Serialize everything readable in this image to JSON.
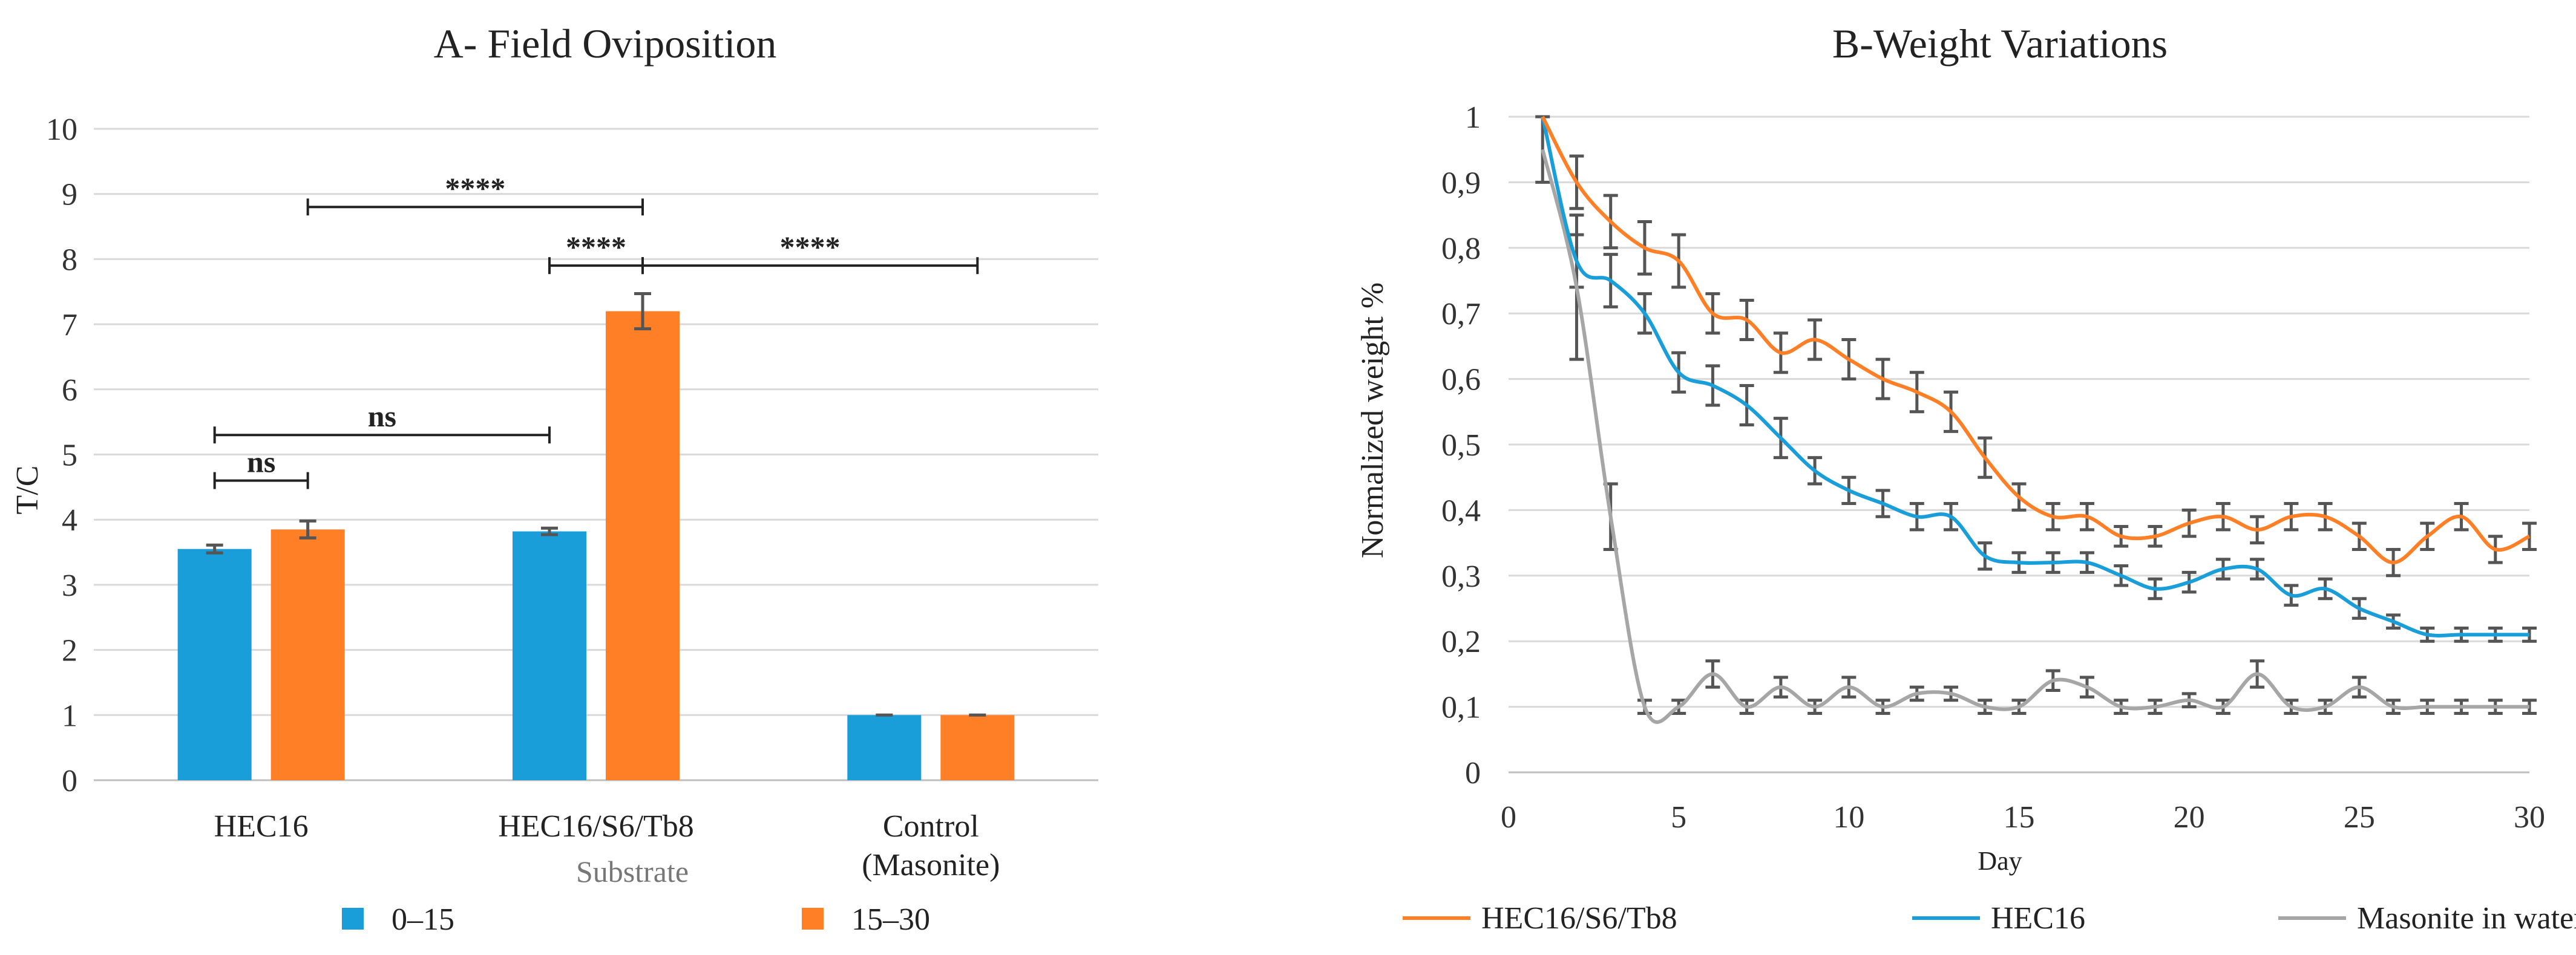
{
  "chart_data": [
    {
      "type": "bar",
      "title": "A- Field Oviposition",
      "xlabel": "Substrate",
      "ylabel": "T/C",
      "ylim": [
        0,
        10
      ],
      "yticks": [
        "0",
        "1",
        "2",
        "3",
        "4",
        "5",
        "6",
        "7",
        "8",
        "9",
        "10"
      ],
      "categories": [
        {
          "line1": "HEC16",
          "line2": ""
        },
        {
          "line1": "HEC16/S6/Tb8",
          "line2": ""
        },
        {
          "line1": "Control",
          "line2": "(Masonite)"
        }
      ],
      "series": [
        {
          "name": "0–15",
          "color": "#1a9ed9",
          "values": [
            3.55,
            3.82,
            1.0
          ],
          "errors": [
            0.06,
            0.05,
            0.0
          ]
        },
        {
          "name": "15–30",
          "color": "#ff7f27",
          "values": [
            3.85,
            7.2,
            1.0
          ],
          "errors": [
            0.13,
            0.27,
            0.0
          ]
        }
      ],
      "significance": [
        {
          "label": "ns",
          "from": {
            "cat": 0,
            "series": 0
          },
          "to": {
            "cat": 0,
            "series": 1
          },
          "level": 4.6
        },
        {
          "label": "ns",
          "from": {
            "cat": 0,
            "series": 0
          },
          "to": {
            "cat": 1,
            "series": 0
          },
          "level": 5.3
        },
        {
          "label": "****",
          "from": {
            "cat": 1,
            "series": 0
          },
          "to": {
            "cat": 1,
            "series": 1
          },
          "level": 7.9
        },
        {
          "label": "****",
          "from": {
            "cat": 1,
            "series": 1
          },
          "to": {
            "cat": 2,
            "series": 1
          },
          "level": 7.9
        },
        {
          "label": "****",
          "from": {
            "cat": 0,
            "series": 1
          },
          "to": {
            "cat": 1,
            "series": 1
          },
          "level": 8.8
        }
      ],
      "legend_position": "bottom"
    },
    {
      "type": "line",
      "title": "B-Weight Variations",
      "xlabel": "Day",
      "ylabel": "Normalized weight %",
      "xlim": [
        0,
        30
      ],
      "ylim": [
        0,
        1
      ],
      "xticks": [
        "0",
        "5",
        "10",
        "15",
        "20",
        "25",
        "30"
      ],
      "yticks": [
        "0",
        "0,1",
        "0,2",
        "0,3",
        "0,4",
        "0,5",
        "0,6",
        "0,7",
        "0,8",
        "0,9",
        "1"
      ],
      "x": [
        1,
        2,
        3,
        4,
        5,
        6,
        7,
        8,
        9,
        10,
        11,
        12,
        13,
        14,
        15,
        16,
        17,
        18,
        19,
        20,
        21,
        22,
        23,
        24,
        25,
        26,
        27,
        28,
        29,
        30
      ],
      "series": [
        {
          "name": "HEC16/S6/Tb8",
          "color": "#ff7f27",
          "values": [
            1.0,
            0.9,
            0.84,
            0.8,
            0.78,
            0.7,
            0.69,
            0.64,
            0.66,
            0.63,
            0.6,
            0.58,
            0.55,
            0.48,
            0.42,
            0.39,
            0.39,
            0.36,
            0.36,
            0.38,
            0.39,
            0.37,
            0.39,
            0.39,
            0.36,
            0.32,
            0.36,
            0.39,
            0.34,
            0.36
          ],
          "errors": [
            0.0,
            0.04,
            0.04,
            0.04,
            0.04,
            0.03,
            0.03,
            0.03,
            0.03,
            0.03,
            0.03,
            0.03,
            0.03,
            0.03,
            0.02,
            0.02,
            0.02,
            0.015,
            0.015,
            0.02,
            0.02,
            0.02,
            0.02,
            0.02,
            0.02,
            0.02,
            0.02,
            0.02,
            0.02,
            0.02
          ]
        },
        {
          "name": "HEC16",
          "color": "#1a9ed9",
          "values": [
            1.0,
            0.78,
            0.75,
            0.7,
            0.61,
            0.59,
            0.56,
            0.51,
            0.46,
            0.43,
            0.41,
            0.39,
            0.39,
            0.33,
            0.32,
            0.32,
            0.32,
            0.3,
            0.28,
            0.29,
            0.31,
            0.31,
            0.27,
            0.28,
            0.25,
            0.23,
            0.21,
            0.21,
            0.21,
            0.21
          ],
          "errors": [
            0.0,
            0.04,
            0.04,
            0.03,
            0.03,
            0.03,
            0.03,
            0.03,
            0.02,
            0.02,
            0.02,
            0.02,
            0.02,
            0.02,
            0.015,
            0.015,
            0.015,
            0.015,
            0.015,
            0.015,
            0.015,
            0.015,
            0.015,
            0.015,
            0.015,
            0.01,
            0.01,
            0.01,
            0.01,
            0.01
          ]
        },
        {
          "name": "Masonite in water",
          "color": "#a6a6a6",
          "values": [
            0.95,
            0.74,
            0.39,
            0.1,
            0.1,
            0.15,
            0.1,
            0.13,
            0.1,
            0.13,
            0.1,
            0.12,
            0.12,
            0.1,
            0.1,
            0.14,
            0.13,
            0.1,
            0.1,
            0.11,
            0.1,
            0.15,
            0.1,
            0.1,
            0.13,
            0.1,
            0.1,
            0.1,
            0.1,
            0.1
          ],
          "errors": [
            0.05,
            0.11,
            0.05,
            0.01,
            0.01,
            0.02,
            0.01,
            0.015,
            0.01,
            0.015,
            0.01,
            0.01,
            0.01,
            0.01,
            0.01,
            0.015,
            0.015,
            0.01,
            0.01,
            0.01,
            0.01,
            0.02,
            0.01,
            0.01,
            0.015,
            0.01,
            0.01,
            0.01,
            0.01,
            0.01
          ]
        }
      ],
      "legend_position": "bottom"
    }
  ]
}
